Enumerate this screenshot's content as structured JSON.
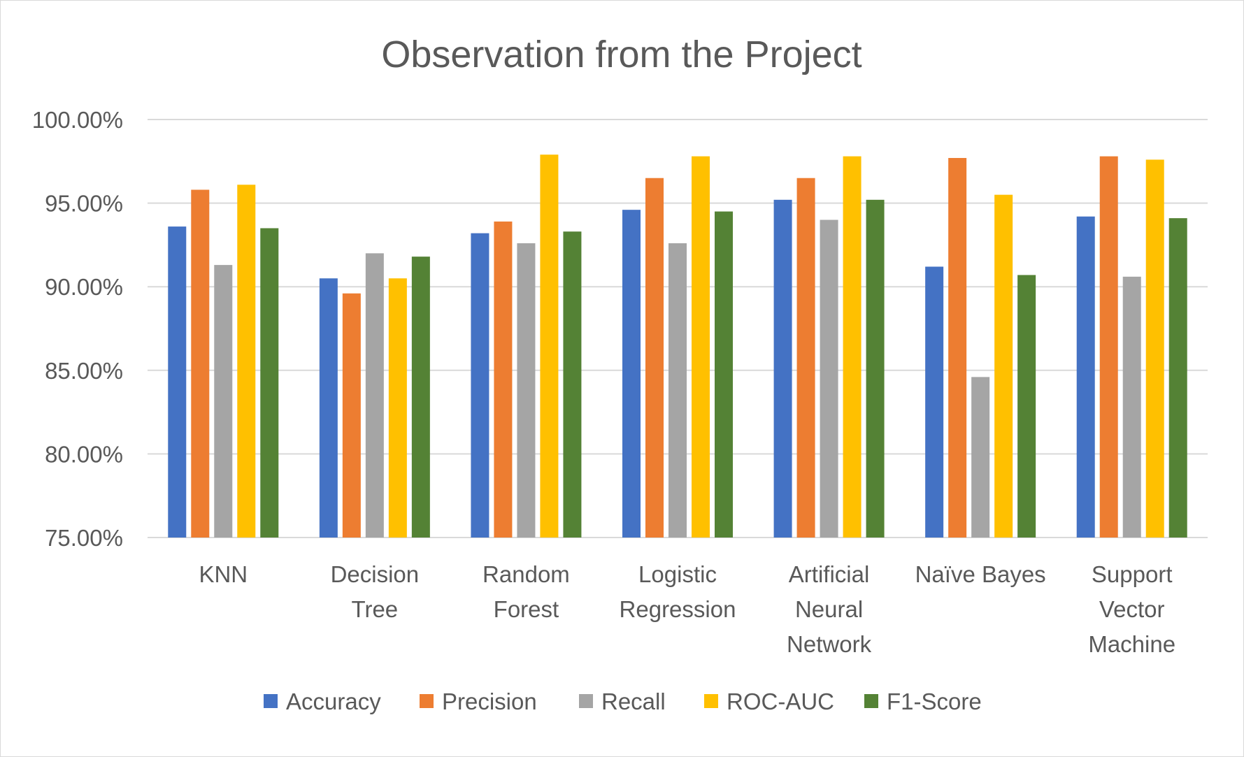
{
  "chart_data": {
    "type": "bar",
    "title": "Observation from the Project",
    "xlabel": "",
    "ylabel": "",
    "ylim": [
      75,
      100
    ],
    "y_ticks": [
      "100.00%",
      "95.00%",
      "90.00%",
      "85.00%",
      "80.00%",
      "75.00%"
    ],
    "y_tick_values": [
      100,
      95,
      90,
      85,
      80,
      75
    ],
    "grid": true,
    "legend_position": "bottom",
    "categories": [
      [
        "KNN"
      ],
      [
        "Decision",
        "Tree"
      ],
      [
        "Random",
        "Forest"
      ],
      [
        "Logistic",
        "Regression"
      ],
      [
        "Artificial",
        "Neural",
        "Network"
      ],
      [
        "Naïve Bayes"
      ],
      [
        "Support",
        "Vector",
        "Machine"
      ]
    ],
    "series": [
      {
        "name": "Accuracy",
        "color": "#4472c4",
        "values": [
          93.6,
          90.5,
          93.2,
          94.6,
          95.2,
          91.2,
          94.2
        ]
      },
      {
        "name": "Precision",
        "color": "#ed7d31",
        "values": [
          95.8,
          89.6,
          93.9,
          96.5,
          96.5,
          97.7,
          97.8
        ]
      },
      {
        "name": "Recall",
        "color": "#a5a5a5",
        "values": [
          91.3,
          92.0,
          92.6,
          92.6,
          94.0,
          84.6,
          90.6
        ]
      },
      {
        "name": "ROC-AUC",
        "color": "#ffc000",
        "values": [
          96.1,
          90.5,
          97.9,
          97.8,
          97.8,
          95.5,
          97.6
        ]
      },
      {
        "name": "F1-Score",
        "color": "#548235",
        "values": [
          93.5,
          91.8,
          93.3,
          94.5,
          95.2,
          90.7,
          94.1
        ]
      }
    ]
  }
}
